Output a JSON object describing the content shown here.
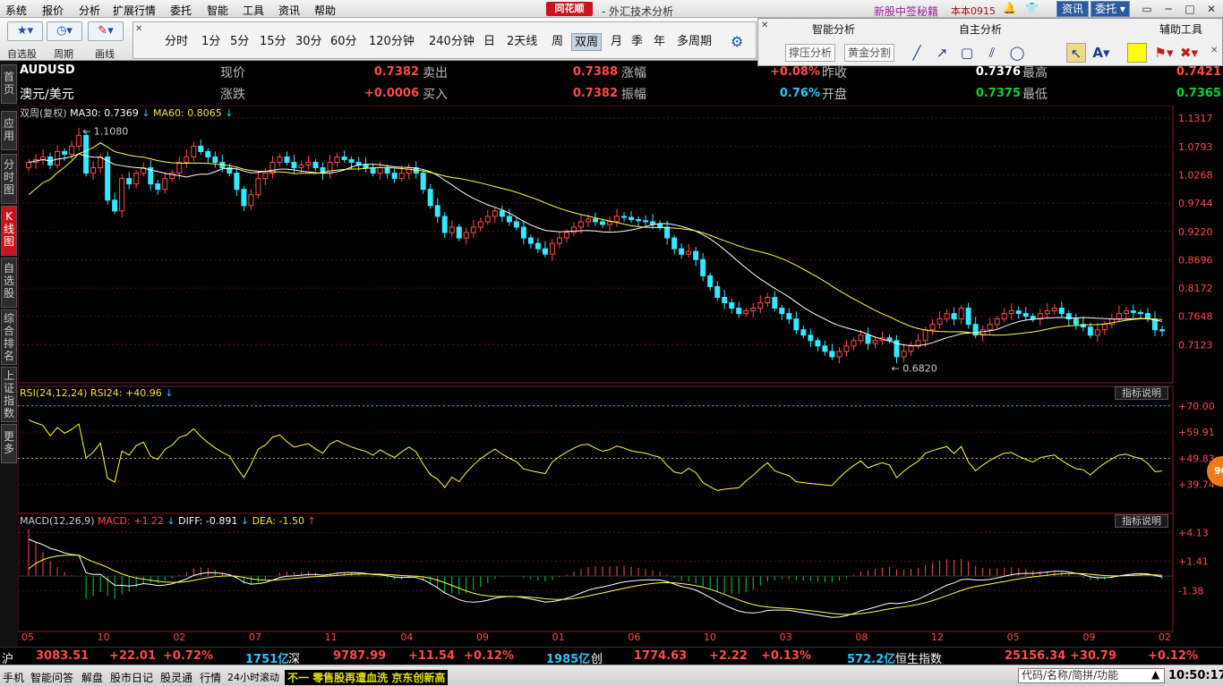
{
  "menu": [
    "系统",
    "报价",
    "分析",
    "扩展行情",
    "委托",
    "智能",
    "工具",
    "资讯",
    "帮助"
  ],
  "app": {
    "logo": "同花顺",
    "title": "- 外汇技术分析",
    "news": "新股中签秘籍",
    "account": "本本0915",
    "btn_news": "资讯",
    "btn_trade": "委托"
  },
  "toolbar": {
    "labels": [
      "自选股",
      "周期",
      "画线"
    ],
    "periods": [
      "分时",
      "1分",
      "5分",
      "15分",
      "30分",
      "60分",
      "120分钟",
      "240分钟",
      "日",
      "2天线",
      "周",
      "双周",
      "月",
      "季",
      "年",
      "多周期"
    ],
    "selected": "双周"
  },
  "analysis": {
    "sections": [
      "智能分析",
      "自主分析",
      "辅助工具"
    ],
    "buttons": [
      "撑压分析",
      "黄金分割"
    ]
  },
  "sidetabs": [
    "首页",
    "应用",
    "分时图",
    "K线图",
    "自选股",
    "综合排名",
    "上证指数",
    "更多"
  ],
  "quote": {
    "code": "AUDUSD",
    "name": "澳元/美元",
    "labels": [
      "现价",
      "卖出",
      "涨幅",
      "昨收",
      "最高",
      "涨跌",
      "买入",
      "振幅",
      "开盘",
      "最低"
    ],
    "values": [
      "0.7382",
      "0.7388",
      "+0.08%",
      "0.7376",
      "0.7421",
      "+0.0006",
      "0.7382",
      "0.76%",
      "0.7375",
      "0.7365"
    ]
  },
  "kline_header": {
    "label": "双周(复权)",
    "ma30": "MA30: 0.7369",
    "ma60": "MA60: 0.8065"
  },
  "rsi_header": {
    "label": "RSI(24,12,24)",
    "rsi24": "RSI24: +40.96"
  },
  "macd_header": {
    "label": "MACD(12,26,9)",
    "macd": "MACD: +1.22",
    "diff": "DIFF: -0.891",
    "dea": "DEA: -1.50"
  },
  "indicator_btn": "指标说明",
  "badge": "90",
  "colors": {
    "up": "#ff4a4a",
    "down": "#35e8ff",
    "ma30": "#ffffff",
    "ma60": "#ffff40",
    "macd_neg": "#00d43a"
  },
  "chart_data": [
    {
      "type": "candlestick",
      "title": "AUDUSD 双周",
      "y_ticks": [
        "1.1317",
        "1.0793",
        "1.0268",
        "0.9744",
        "0.9220",
        "0.8696",
        "0.8172",
        "0.7648",
        "0.7123"
      ],
      "ylim": [
        0.665,
        1.132
      ],
      "x_ticks": [
        "05",
        "10",
        "02",
        "07",
        "11",
        "04",
        "09",
        "01",
        "06",
        "10",
        "03",
        "08",
        "12",
        "05",
        "09",
        "02"
      ],
      "annotations": [
        {
          "text": "1.1080"
        },
        {
          "text": "0.6820"
        }
      ],
      "close": [
        1.05,
        1.055,
        1.06,
        1.045,
        1.07,
        1.065,
        1.08,
        1.1,
        1.03,
        1.04,
        1.06,
        0.98,
        0.96,
        1.02,
        1.01,
        1.03,
        1.04,
        1.01,
        1.0,
        1.02,
        1.03,
        1.05,
        1.06,
        1.08,
        1.07,
        1.06,
        1.05,
        1.04,
        1.03,
        1.0,
        0.97,
        0.99,
        1.02,
        1.03,
        1.05,
        1.06,
        1.05,
        1.04,
        1.045,
        1.05,
        1.04,
        1.03,
        1.05,
        1.06,
        1.055,
        1.05,
        1.045,
        1.04,
        1.03,
        1.04,
        1.03,
        1.02,
        1.03,
        1.04,
        1.03,
        1.0,
        0.97,
        0.95,
        0.92,
        0.93,
        0.91,
        0.92,
        0.93,
        0.94,
        0.95,
        0.96,
        0.95,
        0.94,
        0.93,
        0.91,
        0.9,
        0.89,
        0.88,
        0.9,
        0.91,
        0.92,
        0.93,
        0.94,
        0.945,
        0.94,
        0.935,
        0.94,
        0.95,
        0.948,
        0.944,
        0.942,
        0.94,
        0.935,
        0.93,
        0.91,
        0.89,
        0.88,
        0.885,
        0.87,
        0.84,
        0.82,
        0.8,
        0.79,
        0.78,
        0.77,
        0.775,
        0.78,
        0.79,
        0.8,
        0.78,
        0.77,
        0.76,
        0.74,
        0.73,
        0.72,
        0.71,
        0.7,
        0.69,
        0.7,
        0.71,
        0.72,
        0.73,
        0.715,
        0.72,
        0.725,
        0.72,
        0.69,
        0.7,
        0.71,
        0.72,
        0.74,
        0.75,
        0.76,
        0.77,
        0.76,
        0.78,
        0.75,
        0.73,
        0.74,
        0.75,
        0.76,
        0.77,
        0.775,
        0.77,
        0.765,
        0.76,
        0.77,
        0.775,
        0.78,
        0.77,
        0.76,
        0.75,
        0.745,
        0.73,
        0.74,
        0.75,
        0.76,
        0.77,
        0.775,
        0.772,
        0.77,
        0.76,
        0.74,
        0.738
      ]
    },
    {
      "type": "line",
      "title": "RSI(24,12,24)",
      "y_ticks": [
        "+70.00",
        "+59.91",
        "+49.83",
        "+39.74"
      ],
      "ylim": [
        30,
        72
      ]
    },
    {
      "type": "bar+line",
      "title": "MACD(12,26,9)",
      "y_ticks": [
        "+4.13",
        "+1.41",
        "-1.38"
      ],
      "ylim": [
        -5,
        4.6
      ]
    }
  ],
  "status": {
    "sh_label": "沪",
    "sh": "3083.51",
    "sh_chg": "+22.01",
    "sh_pct": "+0.72%",
    "sh_amt": "1751亿",
    "sz_label": "深",
    "sz": "9787.99",
    "sz_chg": "+11.54",
    "sz_pct": "+0.12%",
    "sz_amt": "1985亿",
    "cy_label": "创",
    "cy": "1774.63",
    "cy_chg": "+2.22",
    "cy_pct": "+0.13%",
    "cy_amt": "572.2亿",
    "hk_label": "恒生指数",
    "hk": "25156.34",
    "hk_chg": "+30.79",
    "hk_pct": "+0.12%"
  },
  "bottom": {
    "items": [
      "手机",
      "智能问答",
      "解盘",
      "股市日记",
      "股灵通",
      "行情",
      "24小时滚动"
    ],
    "ticker": "不一 零售股再遭血洗 京东创新高",
    "search_placeholder": "代码/名称/简拼/功能",
    "clock": "10:50:17"
  }
}
